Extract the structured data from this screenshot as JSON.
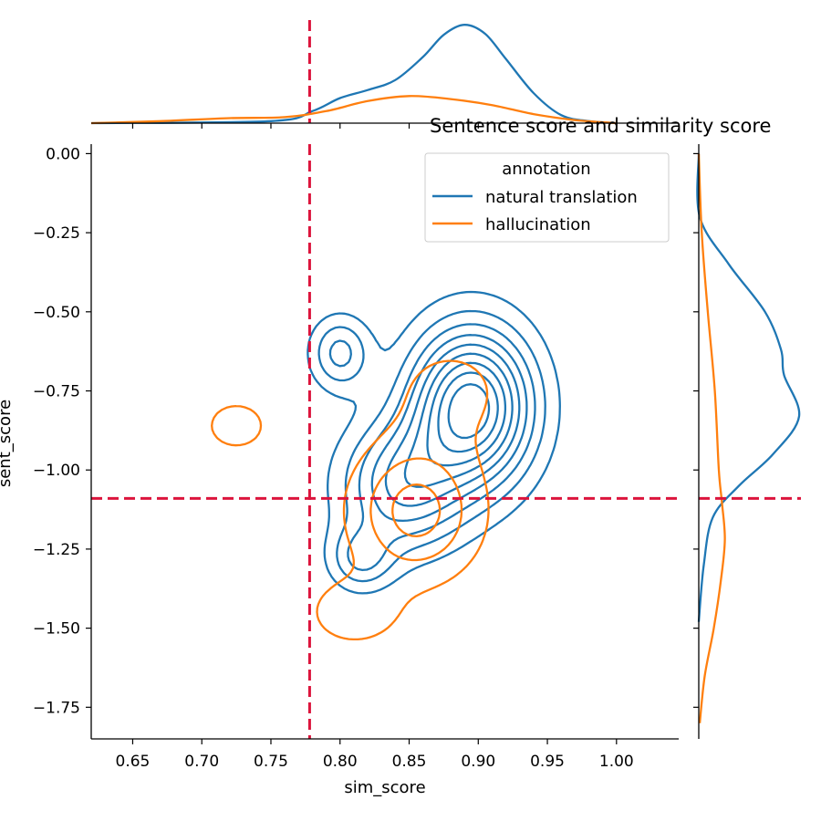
{
  "chart_data": {
    "type": "kde_joint",
    "title": "Sentence score and similarity score",
    "xlabel": "sim_score",
    "ylabel": "sent_score",
    "xlim": [
      0.62,
      1.045
    ],
    "ylim": [
      -1.85,
      0.03
    ],
    "xticks": [
      0.65,
      0.7,
      0.75,
      0.8,
      0.85,
      0.9,
      0.95,
      1.0
    ],
    "xtick_labels": [
      "0.65",
      "0.70",
      "0.75",
      "0.80",
      "0.85",
      "0.90",
      "0.95",
      "1.00"
    ],
    "yticks": [
      0.0,
      -0.25,
      -0.5,
      -0.75,
      -1.0,
      -1.25,
      -1.5,
      -1.75
    ],
    "ytick_labels": [
      "0.00",
      "−0.25",
      "−0.50",
      "−0.75",
      "−1.00",
      "−1.25",
      "−1.50",
      "−1.75"
    ],
    "grid": false,
    "legend": {
      "title": "annotation",
      "placement": "top-right",
      "entries": [
        "natural translation",
        "hallucination"
      ]
    },
    "colors": {
      "natural translation": "#1f77b4",
      "hallucination": "#ff7f0e",
      "threshold": "#dc143c"
    },
    "thresholds": {
      "x": 0.778,
      "y": -1.09
    },
    "series": [
      {
        "name": "natural translation",
        "color": "#1f77b4",
        "density_components": [
          {
            "mx": 0.895,
            "my": -0.8,
            "sx": 0.03,
            "sy": 0.17,
            "w": 0.62
          },
          {
            "mx": 0.845,
            "my": -1.05,
            "sx": 0.03,
            "sy": 0.14,
            "w": 0.26
          },
          {
            "mx": 0.8,
            "my": -0.63,
            "sx": 0.015,
            "sy": 0.08,
            "w": 0.05
          },
          {
            "mx": 0.815,
            "my": -1.28,
            "sx": 0.016,
            "sy": 0.07,
            "w": 0.04
          }
        ],
        "contour_levels": [
          0.1,
          0.2,
          0.3,
          0.4,
          0.5,
          0.6,
          0.7,
          0.8,
          0.9
        ],
        "x_marginal": [
          [
            0.62,
            0
          ],
          [
            0.75,
            0.02
          ],
          [
            0.78,
            0.12
          ],
          [
            0.8,
            0.25
          ],
          [
            0.82,
            0.33
          ],
          [
            0.84,
            0.43
          ],
          [
            0.86,
            0.66
          ],
          [
            0.875,
            0.88
          ],
          [
            0.89,
            0.98
          ],
          [
            0.905,
            0.89
          ],
          [
            0.92,
            0.64
          ],
          [
            0.94,
            0.3
          ],
          [
            0.96,
            0.08
          ],
          [
            0.98,
            0.02
          ],
          [
            1.0,
            0
          ]
        ],
        "y_marginal": [
          [
            0.0,
            0
          ],
          [
            -0.2,
            0.01
          ],
          [
            -0.35,
            0.3
          ],
          [
            -0.5,
            0.66
          ],
          [
            -0.62,
            0.82
          ],
          [
            -0.7,
            0.85
          ],
          [
            -0.83,
            1.0
          ],
          [
            -0.95,
            0.74
          ],
          [
            -1.05,
            0.4
          ],
          [
            -1.15,
            0.14
          ],
          [
            -1.3,
            0.05
          ],
          [
            -1.48,
            0
          ]
        ]
      },
      {
        "name": "hallucination",
        "color": "#ff7f0e",
        "density_components": [
          {
            "mx": 0.855,
            "my": -1.13,
            "sx": 0.03,
            "sy": 0.14,
            "w": 0.55
          },
          {
            "mx": 0.88,
            "my": -0.75,
            "sx": 0.035,
            "sy": 0.13,
            "w": 0.17
          },
          {
            "mx": 0.725,
            "my": -0.86,
            "sx": 0.02,
            "sy": 0.07,
            "w": 0.06
          },
          {
            "mx": 0.81,
            "my": -1.45,
            "sx": 0.025,
            "sy": 0.08,
            "w": 0.1
          }
        ],
        "contour_levels": [
          0.22,
          0.55,
          0.85
        ],
        "x_marginal": [
          [
            0.62,
            0
          ],
          [
            0.67,
            0.02
          ],
          [
            0.72,
            0.05
          ],
          [
            0.76,
            0.06
          ],
          [
            0.79,
            0.12
          ],
          [
            0.82,
            0.22
          ],
          [
            0.85,
            0.27
          ],
          [
            0.88,
            0.24
          ],
          [
            0.91,
            0.18
          ],
          [
            0.94,
            0.09
          ],
          [
            0.97,
            0.03
          ],
          [
            1.0,
            0
          ]
        ],
        "y_marginal": [
          [
            0.0,
            0
          ],
          [
            -0.25,
            0.03
          ],
          [
            -0.5,
            0.09
          ],
          [
            -0.75,
            0.16
          ],
          [
            -1.0,
            0.2
          ],
          [
            -1.1,
            0.23
          ],
          [
            -1.22,
            0.26
          ],
          [
            -1.35,
            0.22
          ],
          [
            -1.5,
            0.15
          ],
          [
            -1.65,
            0.06
          ],
          [
            -1.8,
            0.01
          ]
        ]
      }
    ]
  }
}
